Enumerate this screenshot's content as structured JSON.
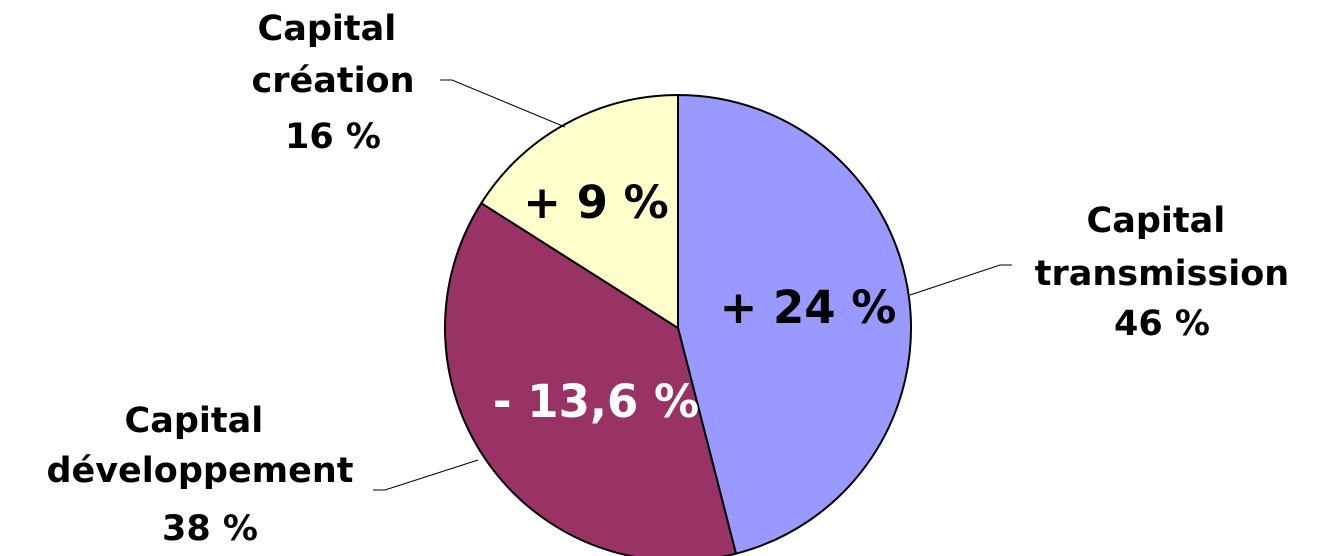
{
  "chart_data": {
    "type": "pie",
    "title": "",
    "slices": [
      {
        "label_lines": [
          "Capital",
          "transmission"
        ],
        "share_label": "46 %",
        "value": 46,
        "growth_label": "+ 24 %",
        "color": "#9999ff",
        "growth_color": "#000000"
      },
      {
        "label_lines": [
          "Capital",
          "développement"
        ],
        "share_label": "38 %",
        "value": 38,
        "growth_label": "- 13,6 %",
        "color": "#993366",
        "growth_color": "#ffffff"
      },
      {
        "label_lines": [
          "Capital",
          "création"
        ],
        "share_label": "16 %",
        "value": 16,
        "growth_label": "+ 9 %",
        "color": "#ffffcc",
        "growth_color": "#000000"
      }
    ]
  }
}
